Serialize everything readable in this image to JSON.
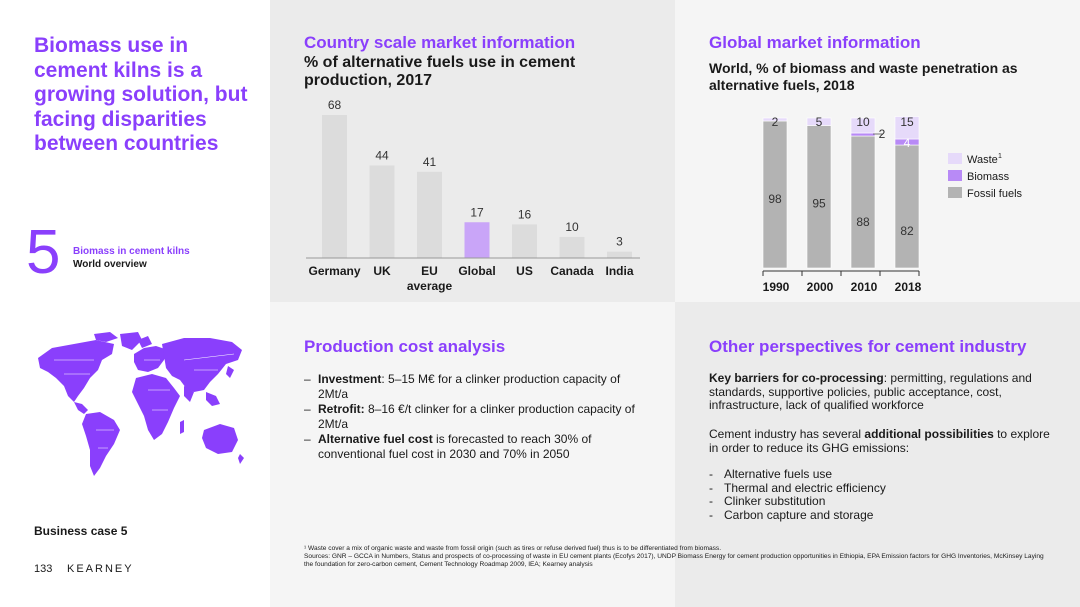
{
  "left": {
    "title": "Biomass use in cement kilns is a growing solution, but facing disparities between countries",
    "section_number": "5",
    "section_title": "Biomass in cement kilns",
    "section_subtitle": "World overview",
    "business_case": "Business case 5",
    "page_number": "133",
    "brand": "KEARNEY",
    "map_icon": "world-map-icon"
  },
  "country": {
    "title": "Country scale market information",
    "subtitle": "% of alternative fuels use in cement production, 2017"
  },
  "global": {
    "title": "Global market information",
    "subtitle": "World, % of biomass and waste penetration as alternative fuels, 2018"
  },
  "cost": {
    "title": "Production cost analysis",
    "items": [
      {
        "bold": "Investment",
        "text": ": 5–15 M€ for a clinker production capacity of 2Mt/a"
      },
      {
        "bold": "Retrofit:",
        "text": " 8–16 €/t clinker for a clinker production capacity of 2Mt/a"
      },
      {
        "bold": "Alternative fuel cost",
        "text": " is forecasted to reach 30% of conventional fuel cost in 2030 and 70% in 2050"
      }
    ]
  },
  "other": {
    "title": "Other perspectives for cement industry",
    "p1_bold": "Key barriers for co-processing",
    "p1_text": ": permitting, regulations and standards, supportive policies, public acceptance, cost, infrastructure, lack of qualified workforce",
    "p2_text_a": "Cement industry has several ",
    "p2_bold": "additional possibilities",
    "p2_text_b": " to explore in order to reduce its GHG emissions:",
    "list": [
      "Alternative fuels use",
      "Thermal and electric efficiency",
      "Clinker substitution",
      "Carbon capture and storage"
    ]
  },
  "footnote": {
    "line1": "¹ Waste cover a mix of organic waste and waste from fossil origin (such as tires or refuse derived fuel) thus is to be differentiated from biomass.",
    "line2": "Sources: GNR – GCCA in Numbers, Status and prospects of co-processing of waste in EU cement plants (Ecofys 2017), UNDP Biomass Energy for cement production opportunities in Ethiopia, EPA Emission factors for GHG Inventories, McKinsey Laying the foundation for zero-carbon cement, Cement Technology Roadmap 2009, IEA; Kearney analysis"
  },
  "chart_data": [
    {
      "type": "bar",
      "categories": [
        "Germany",
        "UK",
        "EU average",
        "Global",
        "US",
        "Canada",
        "India"
      ],
      "values": [
        68,
        44,
        41,
        17,
        16,
        10,
        3
      ],
      "highlight": "Global",
      "colors": {
        "bar": "#dcdcdc",
        "highlight": "#c9a5f8"
      },
      "title": "",
      "ylim": [
        0,
        70
      ]
    },
    {
      "type": "bar",
      "stacked": true,
      "categories": [
        "1990",
        "2000",
        "2010",
        "2018"
      ],
      "series": [
        {
          "name": "Fossil fuels",
          "values": [
            98,
            95,
            88,
            82
          ],
          "color": "#b3b3b3"
        },
        {
          "name": "Biomass",
          "values": [
            0,
            0,
            2,
            4
          ],
          "color": "#b88af6"
        },
        {
          "name": "Waste",
          "values": [
            2,
            5,
            10,
            15
          ],
          "color": "#e6dafa"
        }
      ],
      "legend_labels": [
        "Waste",
        "Biomass",
        "Fossil fuels"
      ],
      "legend_superscript": "1",
      "legend_placement": "right",
      "ylim": [
        0,
        100
      ]
    }
  ]
}
